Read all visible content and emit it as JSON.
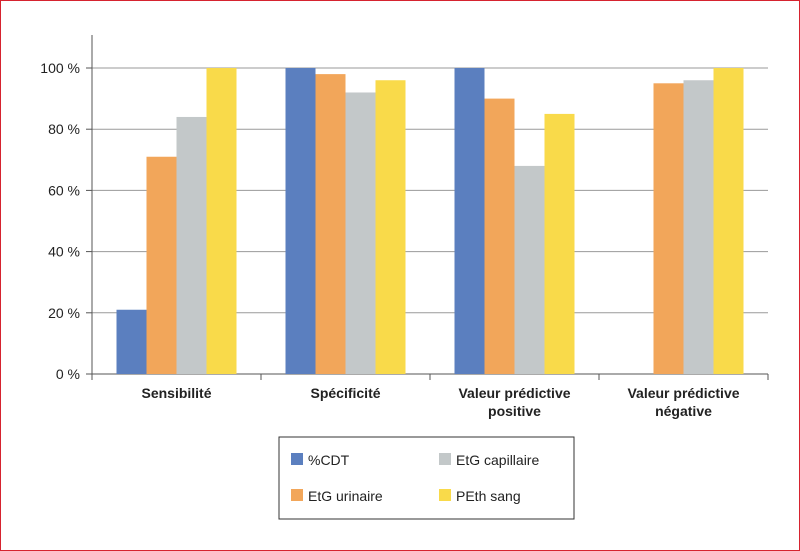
{
  "colors": {
    "%CDT": "#5b7fbf",
    "EtG urinaire": "#f2a65a",
    "EtG capillaire": "#c3c8c9",
    "PEth sang": "#f9da4a",
    "border": "#d6232f",
    "grid": "#9a9a9a"
  },
  "chart_data": {
    "type": "bar",
    "categories": [
      [
        "Sensibilité"
      ],
      [
        "Spécificité"
      ],
      [
        "Valeur prédictive",
        "positive"
      ],
      [
        "Valeur prédictive",
        "négative"
      ]
    ],
    "series": [
      {
        "name": "%CDT",
        "values": [
          21,
          100,
          100,
          null
        ]
      },
      {
        "name": "EtG urinaire",
        "values": [
          71,
          98,
          90,
          95
        ]
      },
      {
        "name": "EtG capillaire",
        "values": [
          84,
          92,
          68,
          96
        ]
      },
      {
        "name": "PEth sang",
        "values": [
          100,
          96,
          85,
          100
        ]
      }
    ],
    "yticks": [
      "0 %",
      "20 %",
      "40 %",
      "60 %",
      "80 %",
      "100 %"
    ],
    "ylim": [
      0,
      110
    ],
    "grid": true,
    "legend_position": "bottom-center",
    "legend_order": [
      "%CDT",
      "EtG capillaire",
      "EtG urinaire",
      "PEth sang"
    ]
  }
}
